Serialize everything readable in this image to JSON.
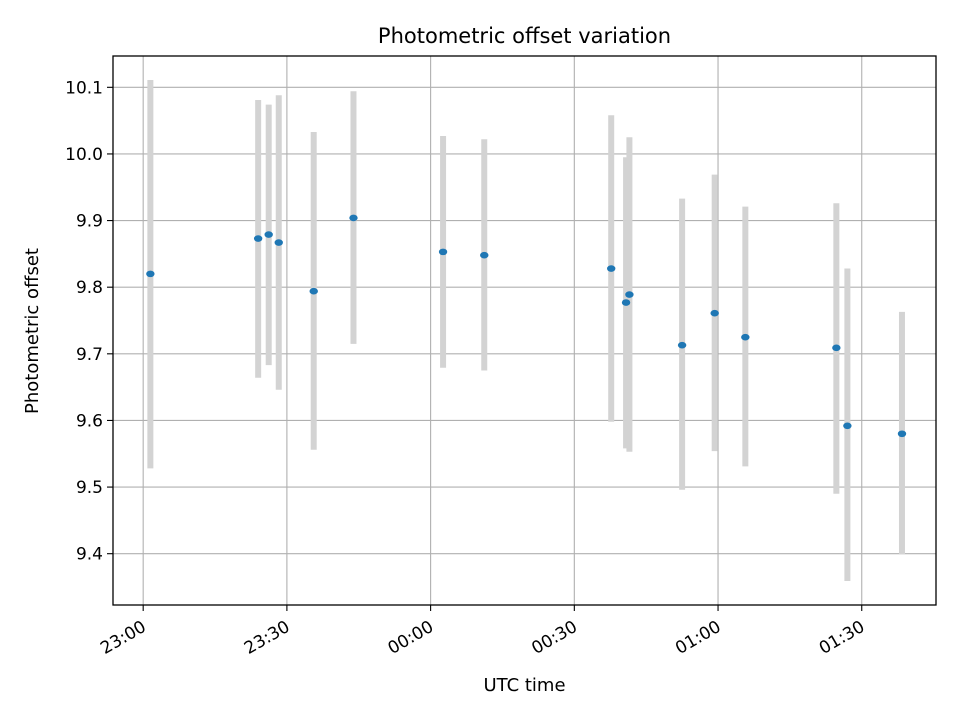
{
  "chart_data": {
    "type": "scatter",
    "title": "Photometric offset variation",
    "xlabel": "UTC time",
    "ylabel": "Photometric offset",
    "x_axis": {
      "kind": "time",
      "ref_time": "23:00",
      "range_minutes": [
        -6.3,
        165.5
      ]
    },
    "ylim": [
      9.323,
      10.147
    ],
    "x_ticks": [
      {
        "label": "23:00",
        "minutes": 0
      },
      {
        "label": "23:30",
        "minutes": 30
      },
      {
        "label": "00:00",
        "minutes": 60
      },
      {
        "label": "00:30",
        "minutes": 90
      },
      {
        "label": "01:00",
        "minutes": 120
      },
      {
        "label": "01:30",
        "minutes": 150
      }
    ],
    "y_ticks": [
      {
        "label": "9.4",
        "value": 9.4
      },
      {
        "label": "9.5",
        "value": 9.5
      },
      {
        "label": "9.6",
        "value": 9.6
      },
      {
        "label": "9.7",
        "value": 9.7
      },
      {
        "label": "9.8",
        "value": 9.8
      },
      {
        "label": "9.9",
        "value": 9.9
      },
      {
        "label": "10.0",
        "value": 10.0
      },
      {
        "label": "10.1",
        "value": 10.1
      }
    ],
    "grid": true,
    "legend": "none",
    "colors": {
      "points": "#1f77b4",
      "error_bars": "#d3d3d3",
      "grid": "#b0b0b0"
    },
    "points": [
      {
        "x_min": 1.5,
        "y": 9.82,
        "y_low": 9.528,
        "y_high": 10.111
      },
      {
        "x_min": 24.0,
        "y": 9.873,
        "y_low": 9.664,
        "y_high": 10.081
      },
      {
        "x_min": 26.2,
        "y": 9.879,
        "y_low": 9.683,
        "y_high": 10.074
      },
      {
        "x_min": 28.3,
        "y": 9.867,
        "y_low": 9.646,
        "y_high": 10.088
      },
      {
        "x_min": 35.6,
        "y": 9.794,
        "y_low": 9.556,
        "y_high": 10.033
      },
      {
        "x_min": 43.9,
        "y": 9.904,
        "y_low": 9.715,
        "y_high": 10.094
      },
      {
        "x_min": 62.6,
        "y": 9.853,
        "y_low": 9.679,
        "y_high": 10.027
      },
      {
        "x_min": 71.2,
        "y": 9.848,
        "y_low": 9.675,
        "y_high": 10.022
      },
      {
        "x_min": 97.7,
        "y": 9.828,
        "y_low": 9.598,
        "y_high": 10.058
      },
      {
        "x_min": 100.8,
        "y": 9.777,
        "y_low": 9.558,
        "y_high": 9.995
      },
      {
        "x_min": 101.5,
        "y": 9.789,
        "y_low": 9.553,
        "y_high": 10.025
      },
      {
        "x_min": 112.5,
        "y": 9.713,
        "y_low": 9.496,
        "y_high": 9.933
      },
      {
        "x_min": 119.3,
        "y": 9.761,
        "y_low": 9.554,
        "y_high": 9.969
      },
      {
        "x_min": 125.7,
        "y": 9.725,
        "y_low": 9.531,
        "y_high": 9.921
      },
      {
        "x_min": 144.7,
        "y": 9.709,
        "y_low": 9.49,
        "y_high": 9.926
      },
      {
        "x_min": 147.0,
        "y": 9.592,
        "y_low": 9.359,
        "y_high": 9.828
      },
      {
        "x_min": 158.4,
        "y": 9.58,
        "y_low": 9.399,
        "y_high": 9.763
      }
    ]
  }
}
